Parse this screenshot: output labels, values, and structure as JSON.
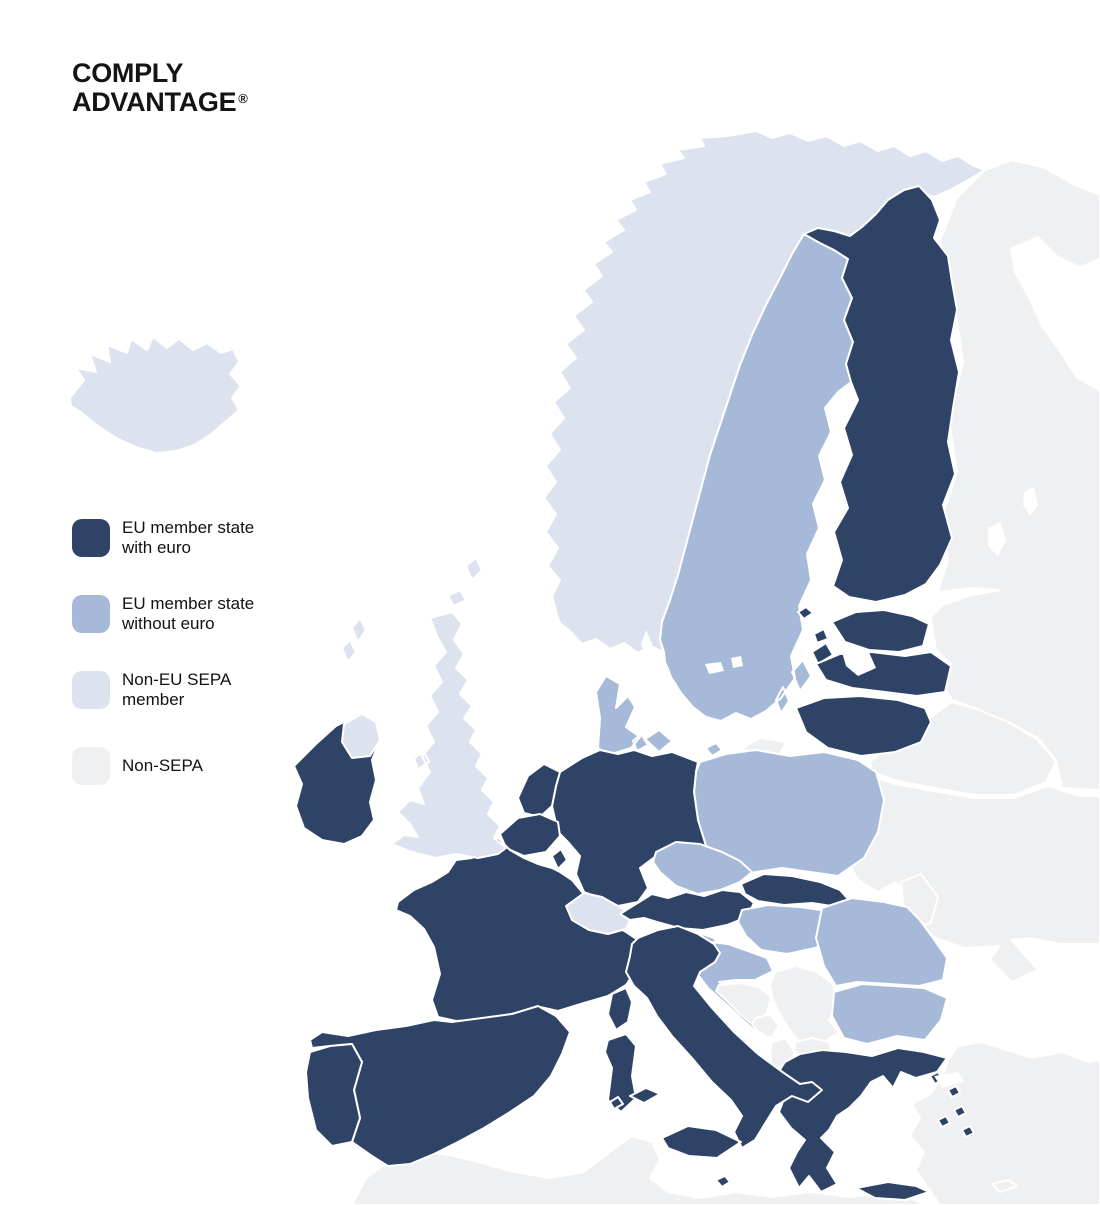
{
  "brand": {
    "line1": "COMPLY",
    "line2": "ADVANTAGE",
    "mark": "®",
    "color": "#141414"
  },
  "legend": {
    "text_color": "#121212",
    "items": [
      {
        "id": "eu-euro",
        "label_line1": "EU member state",
        "label_line2": "with euro",
        "color": "#2e4366"
      },
      {
        "id": "eu-no-euro",
        "label_line1": "EU member state",
        "label_line2": "without euro",
        "color": "#a6b9d8"
      },
      {
        "id": "non-eu-sepa",
        "label_line1": "Non-EU SEPA",
        "label_line2": "member",
        "color": "#dce2ee"
      },
      {
        "id": "non-sepa",
        "label_line1": "Non-SEPA",
        "label_line2": "",
        "color": "#eff0f2"
      }
    ]
  },
  "map": {
    "sea_color": "#ffffff",
    "border_color": "#ffffff",
    "countries": [
      {
        "id": "russia",
        "name": "Russia",
        "category": "non-sepa"
      },
      {
        "id": "belarus",
        "name": "Belarus",
        "category": "non-sepa"
      },
      {
        "id": "ukraine",
        "name": "Ukraine",
        "category": "non-sepa"
      },
      {
        "id": "moldova",
        "name": "Moldova",
        "category": "non-sepa"
      },
      {
        "id": "turkey",
        "name": "Turkey",
        "category": "non-sepa"
      },
      {
        "id": "cyprus",
        "name": "Cyprus",
        "category": "non-sepa"
      },
      {
        "id": "northafrica",
        "name": "North Africa",
        "category": "non-sepa"
      },
      {
        "id": "iceland",
        "name": "Iceland",
        "category": "non-eu-sepa"
      },
      {
        "id": "norway",
        "name": "Norway",
        "category": "non-eu-sepa"
      },
      {
        "id": "sweden",
        "name": "Sweden",
        "category": "eu-no-euro"
      },
      {
        "id": "finland",
        "name": "Finland",
        "category": "eu-euro"
      },
      {
        "id": "denmark",
        "name": "Denmark",
        "category": "eu-no-euro"
      },
      {
        "id": "estonia",
        "name": "Estonia",
        "category": "eu-euro"
      },
      {
        "id": "latvia",
        "name": "Latvia",
        "category": "eu-euro"
      },
      {
        "id": "lithuania",
        "name": "Lithuania",
        "category": "eu-euro"
      },
      {
        "id": "kaliningrad",
        "name": "Russia (Kaliningrad)",
        "category": "non-sepa"
      },
      {
        "id": "poland",
        "name": "Poland",
        "category": "eu-no-euro"
      },
      {
        "id": "germany",
        "name": "Germany",
        "category": "eu-euro"
      },
      {
        "id": "netherlands",
        "name": "Netherlands",
        "category": "eu-euro"
      },
      {
        "id": "belgium",
        "name": "Belgium",
        "category": "eu-euro"
      },
      {
        "id": "luxembourg",
        "name": "Luxembourg",
        "category": "eu-euro"
      },
      {
        "id": "france",
        "name": "France",
        "category": "eu-euro"
      },
      {
        "id": "switzerland",
        "name": "Switzerland",
        "category": "non-eu-sepa"
      },
      {
        "id": "austria",
        "name": "Austria",
        "category": "eu-euro"
      },
      {
        "id": "czechia",
        "name": "Czech Republic",
        "category": "eu-no-euro"
      },
      {
        "id": "slovakia",
        "name": "Slovakia",
        "category": "eu-euro"
      },
      {
        "id": "hungary",
        "name": "Hungary",
        "category": "eu-no-euro"
      },
      {
        "id": "slovenia",
        "name": "Slovenia",
        "category": "eu-no-euro"
      },
      {
        "id": "croatia",
        "name": "Croatia",
        "category": "eu-no-euro"
      },
      {
        "id": "bosnia",
        "name": "Bosnia and Herzegovina",
        "category": "non-sepa"
      },
      {
        "id": "serbia",
        "name": "Serbia",
        "category": "non-sepa"
      },
      {
        "id": "montenegro",
        "name": "Montenegro",
        "category": "non-sepa"
      },
      {
        "id": "albania",
        "name": "Albania",
        "category": "non-sepa"
      },
      {
        "id": "northmacedonia",
        "name": "North Macedonia",
        "category": "non-sepa"
      },
      {
        "id": "bulgaria",
        "name": "Bulgaria",
        "category": "eu-no-euro"
      },
      {
        "id": "romania",
        "name": "Romania",
        "category": "eu-no-euro"
      },
      {
        "id": "greece",
        "name": "Greece",
        "category": "eu-euro"
      },
      {
        "id": "italy",
        "name": "Italy",
        "category": "eu-euro"
      },
      {
        "id": "malta",
        "name": "Malta",
        "category": "eu-euro"
      },
      {
        "id": "spain",
        "name": "Spain",
        "category": "eu-euro"
      },
      {
        "id": "portugal",
        "name": "Portugal",
        "category": "eu-euro"
      },
      {
        "id": "uk",
        "name": "United Kingdom",
        "category": "non-eu-sepa"
      },
      {
        "id": "ireland",
        "name": "Ireland",
        "category": "eu-euro"
      },
      {
        "id": "nireland",
        "name": "United Kingdom (Northern Ireland)",
        "category": "non-eu-sepa"
      }
    ]
  }
}
